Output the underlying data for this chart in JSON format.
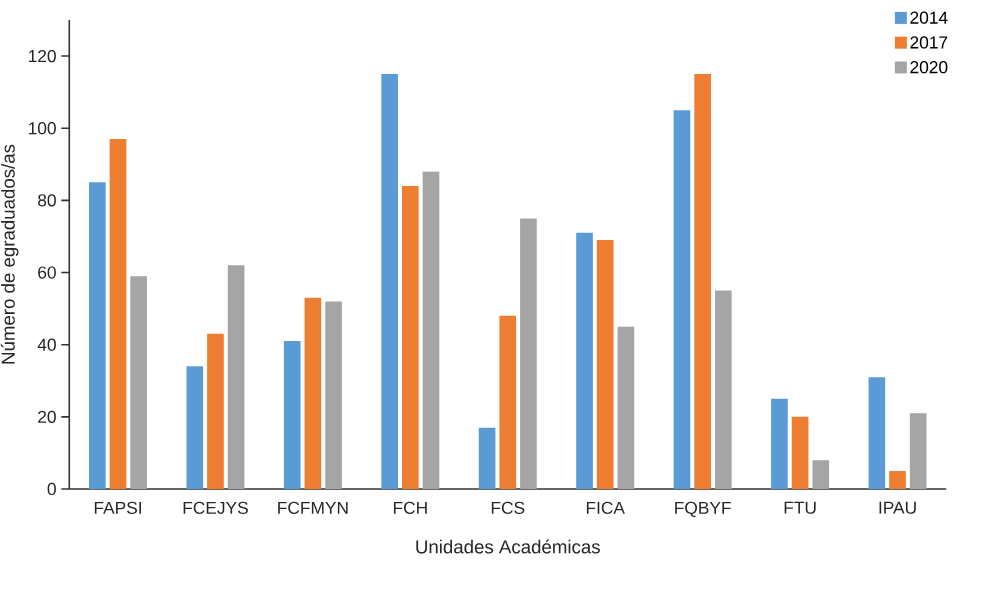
{
  "chart_data": {
    "type": "bar",
    "xlabel": "Unidades Académicas",
    "ylabel": "Número de egraduados/as",
    "categories": [
      "FAPSI",
      "FCEJYS",
      "FCFMYN",
      "FCH",
      "FCS",
      "FICA",
      "FQBYF",
      "FTU",
      "IPAU"
    ],
    "series": [
      {
        "name": "2014",
        "color": "#5b9bd5",
        "values": [
          85,
          34,
          41,
          115,
          17,
          71,
          105,
          25,
          31
        ]
      },
      {
        "name": "2017",
        "color": "#ed7d31",
        "values": [
          97,
          43,
          53,
          84,
          48,
          69,
          115,
          20,
          5
        ]
      },
      {
        "name": "2020",
        "color": "#a5a5a5",
        "values": [
          59,
          62,
          52,
          88,
          75,
          45,
          55,
          8,
          21
        ]
      }
    ],
    "ylim": [
      0,
      130
    ],
    "yticks": [
      0,
      20,
      40,
      60,
      80,
      100,
      120
    ],
    "legend": "top right"
  }
}
